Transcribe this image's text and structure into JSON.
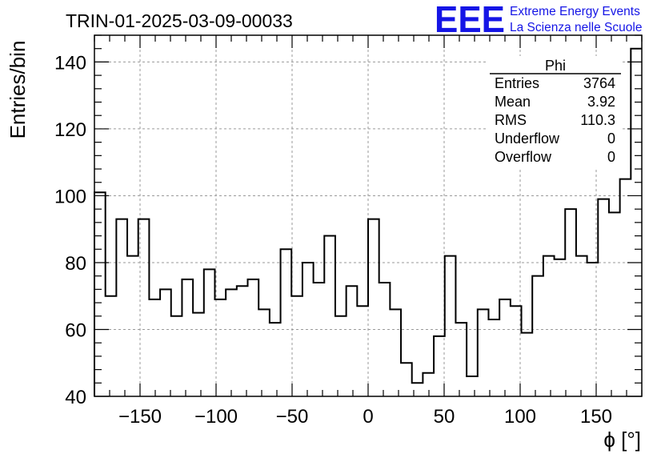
{
  "chart_data": {
    "type": "bar",
    "style": "step-histogram",
    "title": "TRIN-01-2025-03-09-00033",
    "xlabel": "ϕ [°]",
    "ylabel": "Entries/bin",
    "xlim": [
      -180,
      180
    ],
    "ylim": [
      40,
      148
    ],
    "bin_width": 7.2,
    "x_ticks": [
      -150,
      -100,
      -50,
      0,
      50,
      100,
      150
    ],
    "x_tick_labels": [
      "−150",
      "−100",
      "−50",
      "0",
      "50",
      "100",
      "150"
    ],
    "y_ticks": [
      40,
      60,
      80,
      100,
      120,
      140
    ],
    "y_tick_labels": [
      "40",
      "60",
      "80",
      "100",
      "120",
      "140"
    ],
    "grid": true,
    "values": [
      101,
      70,
      93,
      82,
      93,
      69,
      72,
      64,
      75,
      65,
      78,
      69,
      72,
      73,
      75,
      66,
      62,
      84,
      70,
      80,
      74,
      88,
      64,
      73,
      67,
      93,
      74,
      66,
      50,
      44,
      47,
      58,
      82,
      62,
      46,
      66,
      63,
      69,
      67,
      59,
      76,
      82,
      81,
      96,
      82,
      80,
      99,
      95,
      105,
      144
    ]
  },
  "stats_box": {
    "title": "Phi",
    "rows": [
      {
        "label": "Entries",
        "value": "3764"
      },
      {
        "label": "Mean",
        "value": "3.92"
      },
      {
        "label": "RMS",
        "value": "110.3"
      },
      {
        "label": "Underflow",
        "value": "0"
      },
      {
        "label": "Overflow",
        "value": "0"
      }
    ]
  },
  "logo": {
    "text": "EEE",
    "line1": "Extreme Energy Events",
    "line2": "La Scienza nelle Scuole",
    "color": "#1515e6"
  }
}
